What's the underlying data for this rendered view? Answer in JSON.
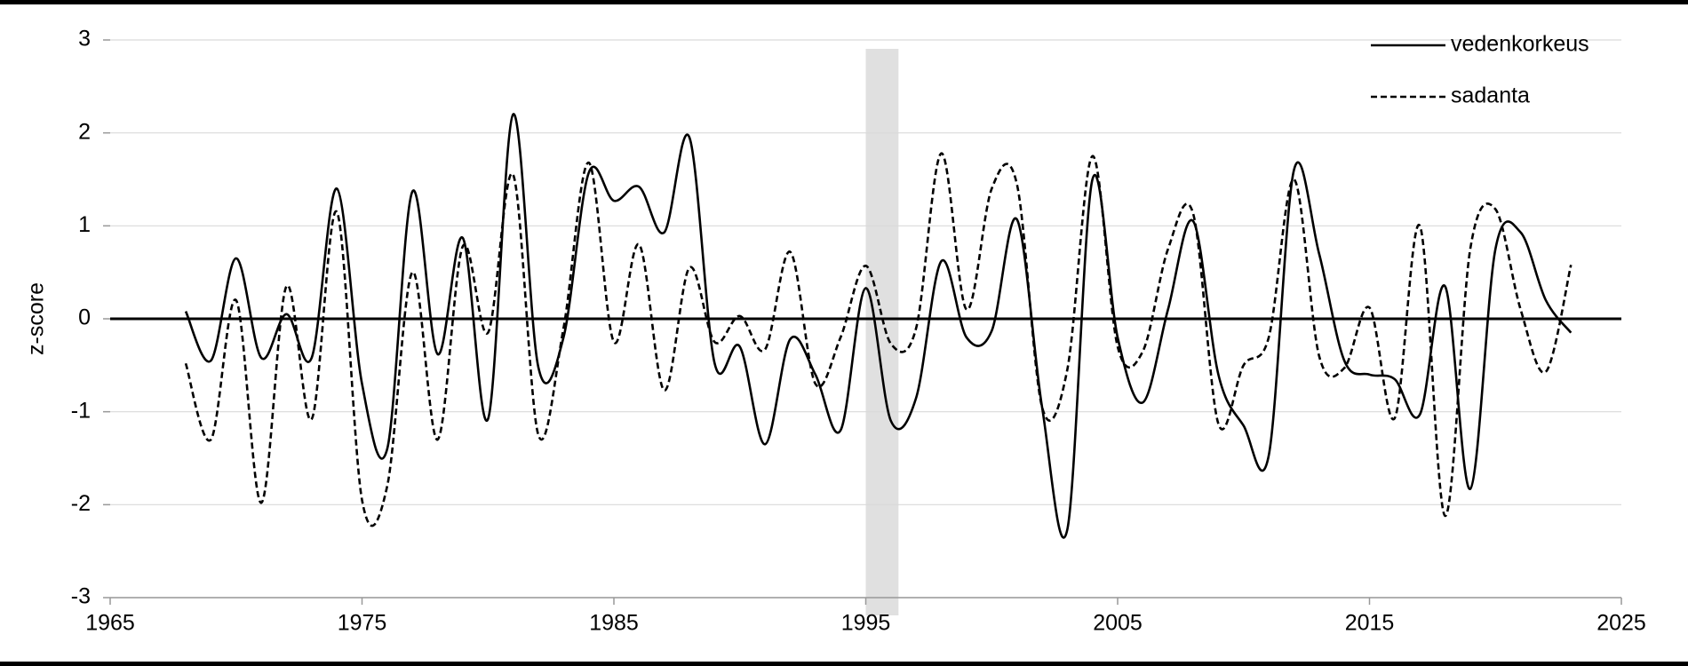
{
  "chart_data": {
    "type": "line",
    "y_label": "z-score",
    "x": [
      1968,
      1969,
      1970,
      1971,
      1972,
      1973,
      1974,
      1975,
      1976,
      1977,
      1978,
      1979,
      1980,
      1981,
      1982,
      1983,
      1984,
      1985,
      1986,
      1987,
      1988,
      1989,
      1990,
      1991,
      1992,
      1993,
      1994,
      1995,
      1996,
      1997,
      1998,
      1999,
      2000,
      2001,
      2002,
      2003,
      2004,
      2005,
      2006,
      2007,
      2008,
      2009,
      2010,
      2011,
      2012,
      2013,
      2014,
      2015,
      2016,
      2017,
      2018,
      2019,
      2020,
      2021,
      2022,
      2023
    ],
    "series": [
      {
        "name": "vedenkorkeus",
        "color": "#000000",
        "dashed": false,
        "values": [
          0.08,
          -0.45,
          0.65,
          -0.42,
          0.05,
          -0.42,
          1.4,
          -0.7,
          -1.4,
          1.37,
          -0.38,
          0.87,
          -1.08,
          2.2,
          -0.52,
          -0.2,
          1.57,
          1.27,
          1.42,
          0.93,
          1.95,
          -0.48,
          -0.3,
          -1.35,
          -0.22,
          -0.6,
          -1.2,
          0.33,
          -1.1,
          -0.85,
          0.62,
          -0.2,
          -0.13,
          1.07,
          -0.95,
          -2.27,
          1.5,
          -0.2,
          -0.9,
          0.1,
          1.05,
          -0.6,
          -1.15,
          -1.47,
          1.6,
          0.7,
          -0.45,
          -0.6,
          -0.65,
          -1.03,
          0.35,
          -1.83,
          0.75,
          0.93,
          0.2,
          -0.15
        ]
      },
      {
        "name": "sadanta",
        "color": "#000000",
        "dashed": true,
        "values": [
          -0.48,
          -1.3,
          0.2,
          -1.98,
          0.35,
          -1.08,
          1.15,
          -1.95,
          -1.8,
          0.5,
          -1.3,
          0.78,
          -0.15,
          1.55,
          -1.25,
          -0.1,
          1.68,
          -0.25,
          0.8,
          -0.77,
          0.55,
          -0.25,
          0.03,
          -0.33,
          0.72,
          -0.7,
          -0.2,
          0.57,
          -0.27,
          -0.1,
          1.78,
          0.1,
          1.4,
          1.45,
          -0.95,
          -0.55,
          1.75,
          -0.3,
          -0.35,
          0.75,
          1.13,
          -1.13,
          -0.5,
          -0.2,
          1.5,
          -0.4,
          -0.53,
          0.12,
          -1.07,
          1.0,
          -2.12,
          0.75,
          1.18,
          0.1,
          -0.57,
          0.58
        ]
      }
    ],
    "shaded_range": [
      1995,
      1996.3
    ],
    "shade_color": "#e0e0e0",
    "xlim": [
      1965,
      2025
    ],
    "xticks": [
      1965,
      1975,
      1985,
      1995,
      2005,
      2015,
      2025
    ],
    "ylim": [
      -3,
      3
    ],
    "yticks": [
      -3,
      -2,
      -1,
      0,
      1,
      2,
      3
    ],
    "grid": true,
    "legend": "top-right"
  }
}
